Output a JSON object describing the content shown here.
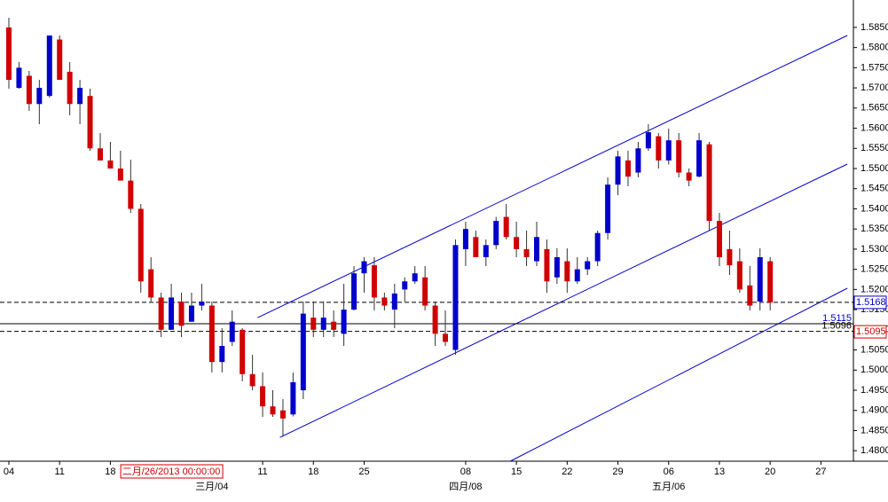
{
  "chart_data": {
    "type": "candlestick",
    "open": [
      1.585,
      1.57,
      1.573,
      1.566,
      1.568,
      1.582,
      1.574,
      1.566,
      1.568,
      1.555,
      1.552,
      1.55,
      1.547,
      1.54,
      1.525,
      1.518,
      1.51,
      1.517,
      1.512,
      1.516,
      1.516,
      1.502,
      1.507,
      1.51,
      1.499,
      1.496,
      1.491,
      1.49,
      1.489,
      1.495,
      1.513,
      1.51,
      1.512,
      1.509,
      1.515,
      1.524,
      1.526,
      1.518,
      1.515,
      1.52,
      1.522,
      1.523,
      1.516,
      1.509,
      1.505,
      1.53,
      1.533,
      1.528,
      1.531,
      1.538,
      1.533,
      1.53,
      1.527,
      1.53,
      1.523,
      1.527,
      1.522,
      1.525,
      1.527,
      1.534,
      1.546,
      1.552,
      1.549,
      1.555,
      1.558,
      1.552,
      1.557,
      1.549,
      1.548,
      1.556,
      1.537,
      1.53,
      1.527,
      1.521,
      1.517,
      1.527
    ],
    "high": [
      1.5874,
      1.5764,
      1.5742,
      1.572,
      1.583,
      1.583,
      1.5764,
      1.572,
      1.5698,
      1.5588,
      1.5566,
      1.5544,
      1.5522,
      1.5412,
      1.528,
      1.5192,
      1.5214,
      1.5192,
      1.5192,
      1.5214,
      1.517,
      1.5104,
      1.5148,
      1.5104,
      1.5038,
      1.4994,
      1.495,
      1.4928,
      1.4994,
      1.517,
      1.517,
      1.517,
      1.5148,
      1.5214,
      1.5258,
      1.528,
      1.528,
      1.5192,
      1.5214,
      1.523,
      1.5258,
      1.5258,
      1.517,
      1.5148,
      1.5324,
      1.5368,
      1.5346,
      1.5324,
      1.538,
      1.5412,
      1.5368,
      1.5346,
      1.5368,
      1.5324,
      1.5302,
      1.5302,
      1.528,
      1.528,
      1.5346,
      1.5478,
      1.5544,
      1.5544,
      1.5566,
      1.561,
      1.5588,
      1.5599,
      1.5588,
      1.55,
      1.5588,
      1.5566,
      1.539,
      1.5346,
      1.5302,
      1.5258,
      1.5302,
      1.528
    ],
    "low": [
      1.5698,
      1.5698,
      1.5643,
      1.561,
      1.5676,
      1.572,
      1.5632,
      1.561,
      1.5544,
      1.5522,
      1.55,
      1.5478,
      1.539,
      1.5192,
      1.517,
      1.5082,
      1.5104,
      1.5082,
      1.5126,
      1.5148,
      1.4994,
      1.4994,
      1.506,
      1.4972,
      1.495,
      1.4884,
      1.4884,
      1.4835,
      1.4885,
      1.4928,
      1.5082,
      1.5082,
      1.5082,
      1.506,
      1.5148,
      1.5192,
      1.5148,
      1.5148,
      1.5104,
      1.517,
      1.5214,
      1.5148,
      1.506,
      1.506,
      1.5038,
      1.5258,
      1.528,
      1.5258,
      1.53,
      1.5324,
      1.528,
      1.5258,
      1.5258,
      1.5192,
      1.5214,
      1.5192,
      1.5214,
      1.5236,
      1.5258,
      1.5324,
      1.5434,
      1.5456,
      1.5478,
      1.5544,
      1.55,
      1.551,
      1.5478,
      1.5456,
      1.5478,
      1.5346,
      1.5258,
      1.5236,
      1.5192,
      1.5148,
      1.5148,
      1.5148
    ],
    "close": [
      1.572,
      1.575,
      1.566,
      1.57,
      1.583,
      1.572,
      1.566,
      1.57,
      1.555,
      1.552,
      1.55,
      1.547,
      1.54,
      1.522,
      1.518,
      1.51,
      1.518,
      1.511,
      1.516,
      1.517,
      1.502,
      1.506,
      1.512,
      1.499,
      1.496,
      1.491,
      1.489,
      1.488,
      1.497,
      1.514,
      1.51,
      1.513,
      1.51,
      1.515,
      1.524,
      1.527,
      1.518,
      1.516,
      1.519,
      1.522,
      1.524,
      1.516,
      1.509,
      1.507,
      1.531,
      1.535,
      1.528,
      1.531,
      1.537,
      1.533,
      1.53,
      1.528,
      1.533,
      1.522,
      1.528,
      1.522,
      1.525,
      1.527,
      1.534,
      1.546,
      1.553,
      1.548,
      1.555,
      1.559,
      1.552,
      1.557,
      1.549,
      1.547,
      1.557,
      1.537,
      1.528,
      1.526,
      1.52,
      1.516,
      1.528,
      1.5168
    ],
    "up_color": "#0000cc",
    "down_color": "#d00000",
    "xlim": [
      -0.874,
      83.2
    ],
    "ylim": [
      1.4774,
      1.5918
    ],
    "yticks": [
      {
        "value": 1.48,
        "label": "1.4800"
      },
      {
        "value": 1.485,
        "label": "1.4850"
      },
      {
        "value": 1.49,
        "label": "1.4900"
      },
      {
        "value": 1.495,
        "label": "1.4950"
      },
      {
        "value": 1.5,
        "label": "1.5000"
      },
      {
        "value": 1.505,
        "label": "1.5050"
      },
      {
        "value": 1.51,
        "label": "1.5100"
      },
      {
        "value": 1.515,
        "label": "1.5150"
      },
      {
        "value": 1.52,
        "label": "1.5200"
      },
      {
        "value": 1.525,
        "label": "1.5250"
      },
      {
        "value": 1.53,
        "label": "1.5300"
      },
      {
        "value": 1.535,
        "label": "1.5350"
      },
      {
        "value": 1.54,
        "label": "1.5400"
      },
      {
        "value": 1.545,
        "label": "1.5450"
      },
      {
        "value": 1.55,
        "label": "1.5500"
      },
      {
        "value": 1.555,
        "label": "1.5550"
      },
      {
        "value": 1.56,
        "label": "1.5600"
      },
      {
        "value": 1.565,
        "label": "1.5650"
      },
      {
        "value": 1.57,
        "label": "1.5700"
      },
      {
        "value": 1.575,
        "label": "1.5750"
      },
      {
        "value": 1.58,
        "label": "1.5800"
      },
      {
        "value": 1.585,
        "label": "1.5850"
      }
    ],
    "xticks": [
      {
        "value": 0,
        "label": "04"
      },
      {
        "value": 5,
        "label": "11"
      },
      {
        "value": 10,
        "label": "18"
      },
      {
        "value": 25,
        "label": "11"
      },
      {
        "value": 30,
        "label": "18"
      },
      {
        "value": 35,
        "label": "25"
      },
      {
        "value": 45,
        "label": "08"
      },
      {
        "value": 50,
        "label": "15"
      },
      {
        "value": 55,
        "label": "22"
      },
      {
        "value": 60,
        "label": "29"
      },
      {
        "value": 65,
        "label": "06"
      },
      {
        "value": 70,
        "label": "13"
      },
      {
        "value": 75,
        "label": "20"
      },
      {
        "value": 80,
        "label": "27"
      }
    ],
    "month_ticks": [
      {
        "value": 20,
        "label": "三月/04"
      },
      {
        "value": 45,
        "label": "四月/08"
      },
      {
        "value": 65,
        "label": "五月/06"
      }
    ],
    "cursor": {
      "value": 16,
      "label": "二月/26/2013 00:00:00"
    },
    "trend_lines": [
      {
        "x": [
          24.5,
          82.6
        ],
        "y": [
          1.513,
          1.583
        ]
      },
      {
        "x": [
          26.7,
          82.6
        ],
        "y": [
          1.4833,
          1.5511
        ]
      },
      {
        "x": [
          49.4,
          82.6
        ],
        "y": [
          1.4774,
          1.5203
        ]
      }
    ],
    "levels": [
      {
        "value": 1.5168,
        "label": "1.5168",
        "style": "dashed",
        "tag": "axis-blue"
      },
      {
        "value": 1.5115,
        "label": "1.5115",
        "style": "solid",
        "tag": "left-blue"
      },
      {
        "value": 1.5096,
        "label": "1.5096",
        "style": "dashed",
        "tag": "left-black"
      }
    ],
    "price_marker": {
      "value": 1.5095,
      "label": "1.5095"
    }
  }
}
